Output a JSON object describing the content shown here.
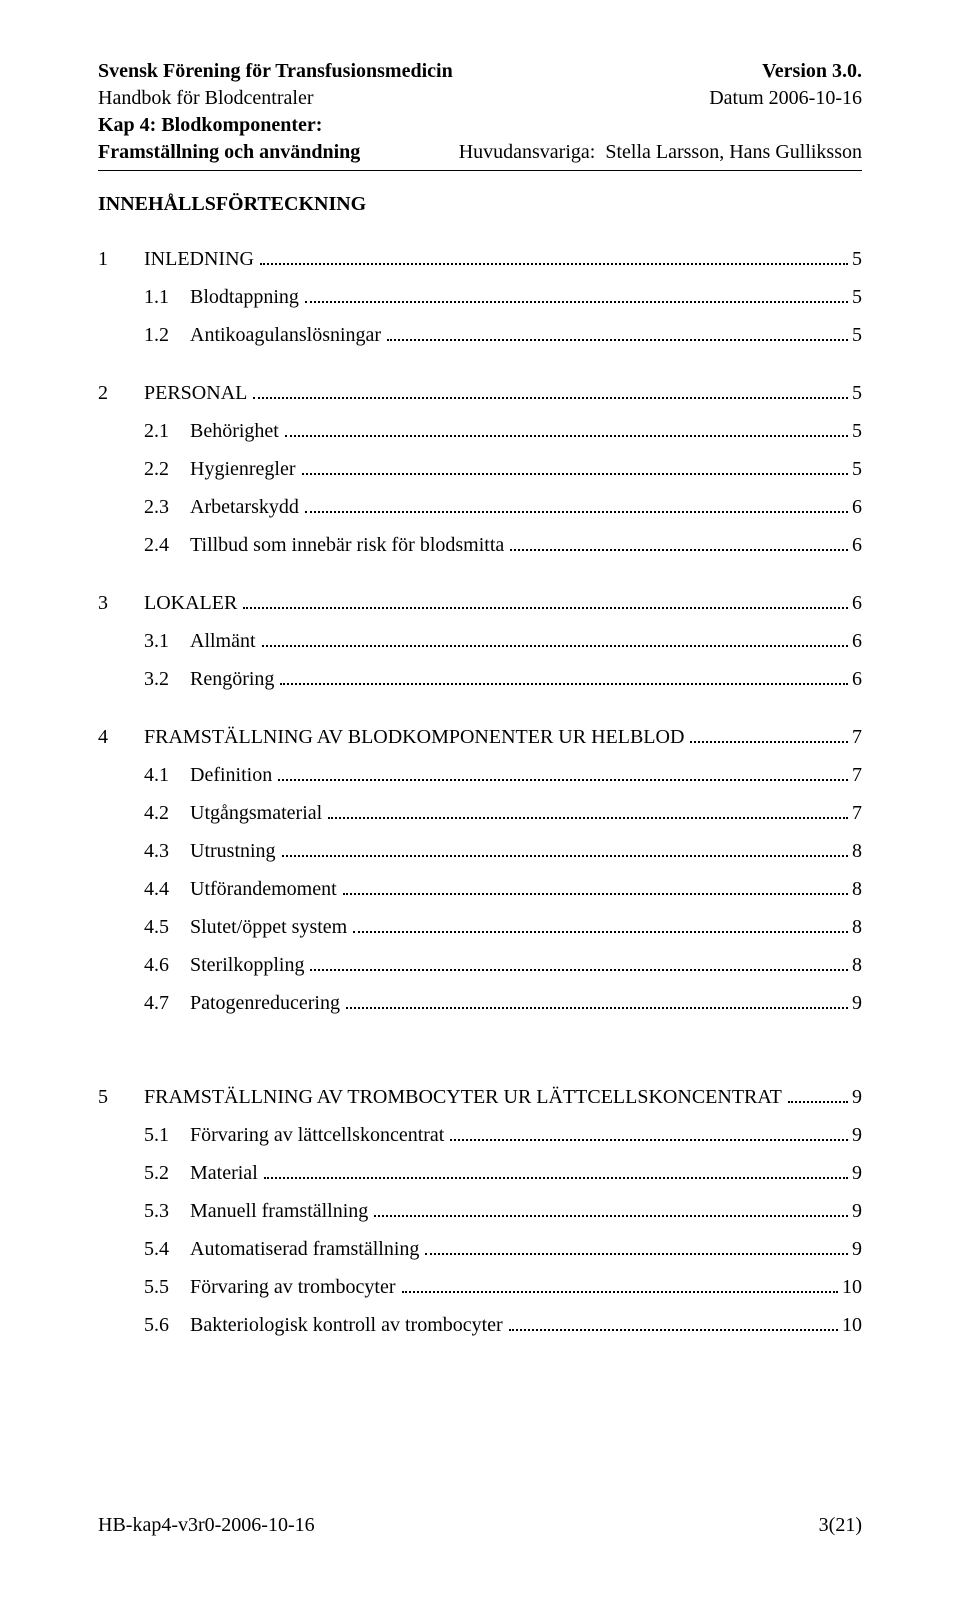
{
  "header": {
    "org": "Svensk Förening för Transfusionsmedicin",
    "version": "Version 3.0.",
    "handbook": "Handbok för Blodcentraler",
    "date": "Datum 2006-10-16",
    "chapter": "Kap 4: Blodkomponenter:",
    "chapter_sub": "Framställning och användning",
    "responsible_label": "Huvudansvariga:",
    "responsible_names": "Stella Larsson, Hans Gulliksson"
  },
  "toc_title": "INNEHÅLLSFÖRTECKNING",
  "toc": [
    {
      "num": "1",
      "label": "INLEDNING",
      "page": "5",
      "children": [
        {
          "num": "1.1",
          "label": "Blodtappning",
          "page": "5"
        },
        {
          "num": "1.2",
          "label": "Antikoagulanslösningar",
          "page": "5"
        }
      ]
    },
    {
      "num": "2",
      "label": "PERSONAL",
      "page": "5",
      "children": [
        {
          "num": "2.1",
          "label": "Behörighet",
          "page": "5"
        },
        {
          "num": "2.2",
          "label": "Hygienregler",
          "page": "5"
        },
        {
          "num": "2.3",
          "label": "Arbetarskydd",
          "page": "6"
        },
        {
          "num": "2.4",
          "label": "Tillbud som innebär risk för blodsmitta",
          "page": "6"
        }
      ]
    },
    {
      "num": "3",
      "label": "LOKALER",
      "page": "6",
      "children": [
        {
          "num": "3.1",
          "label": "Allmänt",
          "page": "6"
        },
        {
          "num": "3.2",
          "label": "Rengöring",
          "page": "6"
        }
      ]
    },
    {
      "num": "4",
      "label": "FRAMSTÄLLNING AV BLODKOMPONENTER UR HELBLOD",
      "page": "7",
      "big_gap_after": true,
      "children": [
        {
          "num": "4.1",
          "label": "Definition",
          "page": "7"
        },
        {
          "num": "4.2",
          "label": "Utgångsmaterial",
          "page": "7"
        },
        {
          "num": "4.3",
          "label": "Utrustning",
          "page": "8"
        },
        {
          "num": "4.4",
          "label": "Utförandemoment",
          "page": "8"
        },
        {
          "num": "4.5",
          "label": "Slutet/öppet system",
          "page": "8"
        },
        {
          "num": "4.6",
          "label": "Sterilkoppling",
          "page": "8"
        },
        {
          "num": "4.7",
          "label": "Patogenreducering",
          "page": "9"
        }
      ]
    },
    {
      "num": "5",
      "label": "FRAMSTÄLLNING AV TROMBOCYTER UR LÄTTCELLSKONCENTRAT",
      "page": "9",
      "children": [
        {
          "num": "5.1",
          "label": "Förvaring av lättcellskoncentrat",
          "page": "9"
        },
        {
          "num": "5.2",
          "label": "Material",
          "page": "9"
        },
        {
          "num": "5.3",
          "label": "Manuell framställning",
          "page": "9"
        },
        {
          "num": "5.4",
          "label": "Automatiserad framställning",
          "page": "9"
        },
        {
          "num": "5.5",
          "label": "Förvaring av trombocyter",
          "page": "10"
        },
        {
          "num": "5.6",
          "label": "Bakteriologisk kontroll av trombocyter",
          "page": "10"
        }
      ]
    }
  ],
  "footer": {
    "left": "HB-kap4-v3r0-2006-10-16",
    "right": "3(21)"
  }
}
